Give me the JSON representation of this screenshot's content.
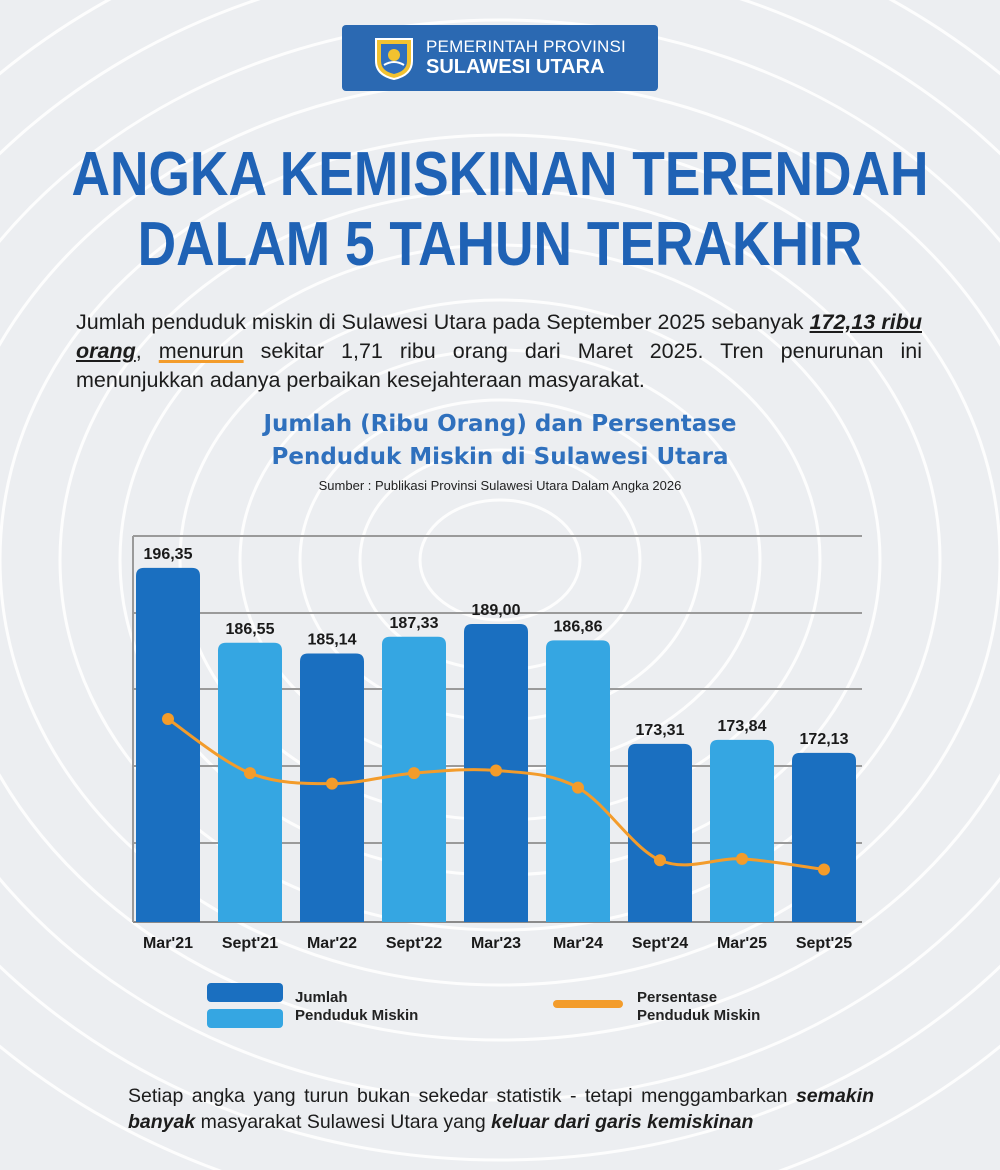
{
  "header": {
    "line1": "PEMERINTAH PROVINSI",
    "line2": "SULAWESI UTARA"
  },
  "title": {
    "line1": "ANGKA KEMISKINAN TERENDAH",
    "line2": "DALAM 5 TAHUN TERAKHIR"
  },
  "intro": {
    "part1": "Jumlah penduduk miskin di Sulawesi Utara pada September 2025 sebanyak ",
    "bold": "172,13 ribu orang",
    "part2": ", ",
    "highlight": "menurun",
    "part3": " sekitar 1,71 ribu orang dari Maret 2025. Tren penurunan ini menunjukkan adanya perbaikan kesejahteraan masyarakat."
  },
  "chart_data": {
    "type": "bar",
    "title_line1": "Jumlah (Ribu Orang) dan Persentase",
    "title_line2": "Penduduk Miskin di Sulawesi Utara",
    "source": "Sumber : Publikasi Provinsi Sulawesi Utara Dalam Angka 2026",
    "categories": [
      "Mar'21",
      "Sept'21",
      "Mar'22",
      "Sept'22",
      "Mar'23",
      "Mar'24",
      "Sept'24",
      "Mar'25",
      "Sept'25"
    ],
    "series": [
      {
        "name": "Jumlah Penduduk Miskin",
        "values": [
          196.35,
          186.55,
          185.14,
          187.33,
          189.0,
          186.86,
          173.31,
          173.84,
          172.13
        ],
        "labels": [
          "196,35",
          "186,55",
          "185,14",
          "187,33",
          "189,00",
          "186,86",
          "173,31",
          "173,84",
          "172,13"
        ],
        "colors": [
          "#1a6fc0",
          "#35a6e2",
          "#1a6fc0",
          "#35a6e2",
          "#1a6fc0",
          "#35a6e2",
          "#1a6fc0",
          "#35a6e2",
          "#1a6fc0"
        ]
      },
      {
        "name": "Persentase Penduduk Miskin",
        "type": "line",
        "color": "#f39c2b",
        "values": [
          7.77,
          7.36,
          7.28,
          7.36,
          7.38,
          7.25,
          6.7,
          6.71,
          6.63
        ]
      }
    ],
    "legend": {
      "bar_label_line1": "Jumlah",
      "bar_label_line2": "Penduduk Miskin",
      "line_label_line1": "Persentase",
      "line_label_line2": "Penduduk Miskin",
      "bar_color_dark": "#1a6fc0",
      "bar_color_light": "#35a6e2"
    },
    "grid": true,
    "legend_placement": "bottom"
  },
  "outro": {
    "part1": "Setiap angka yang turun bukan sekedar statistik - tetapi menggambarkan ",
    "bold1": "semakin banyak",
    "part2": " masyarakat Sulawesi Utara yang ",
    "bold2": "keluar dari garis kemiskinan"
  },
  "colors": {
    "accent_blue": "#1f62b5",
    "header_blue": "#2b69b2",
    "line_orange": "#f39c2b"
  }
}
